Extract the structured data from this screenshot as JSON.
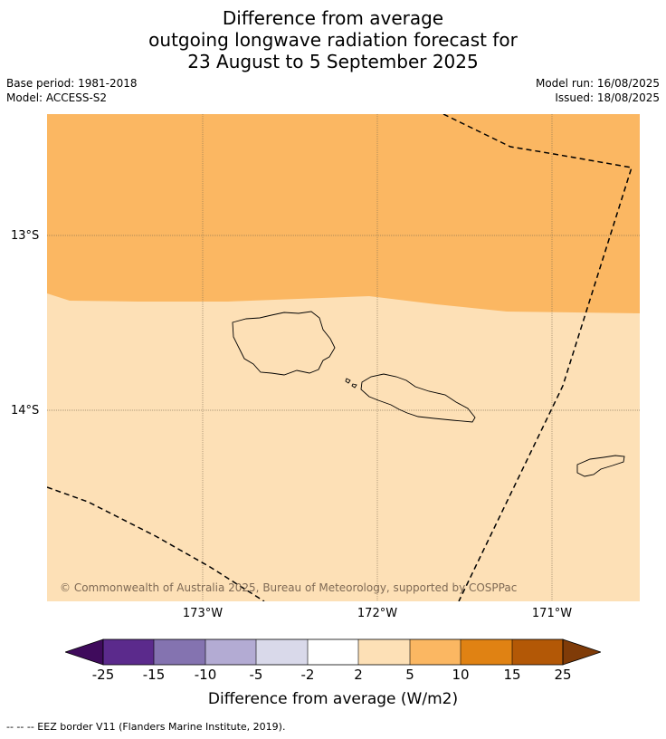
{
  "title": {
    "line1": "Difference from average",
    "line2": "outgoing longwave radiation forecast for",
    "line3": "23 August to 5 September 2025"
  },
  "meta": {
    "base_period": "Base period: 1981-2018",
    "model": "Model: ACCESS-S2",
    "model_run": "Model run: 16/08/2025",
    "issued": "Issued: 18/08/2025"
  },
  "map": {
    "lat_labels": [
      "13°S",
      "14°S"
    ],
    "lon_labels": [
      "173°W",
      "172°W",
      "171°W"
    ],
    "copyright": "© Commonwealth of Australia 2025, Bureau of Meteorology, supported by COSPPac",
    "colors": {
      "upper_region": "#fbb762",
      "lower_region": "#fde0b6",
      "coastline": "#000000",
      "gridline": "#7a6a50"
    }
  },
  "colorbar": {
    "label": "Difference from average (W/m2)",
    "ticks": [
      "-25",
      "-15",
      "-10",
      "-5",
      "-2",
      "2",
      "5",
      "10",
      "15",
      "25"
    ],
    "colors": [
      "#3f0b5c",
      "#5b2a8c",
      "#8473b0",
      "#b3abd3",
      "#d9d9ea",
      "#ffffff",
      "#fde0b6",
      "#fbb762",
      "#e08213",
      "#b35806",
      "#7f3b08"
    ]
  },
  "legend_note": "--  --  -- EEZ border V11 (Flanders Marine Institute, 2019)."
}
